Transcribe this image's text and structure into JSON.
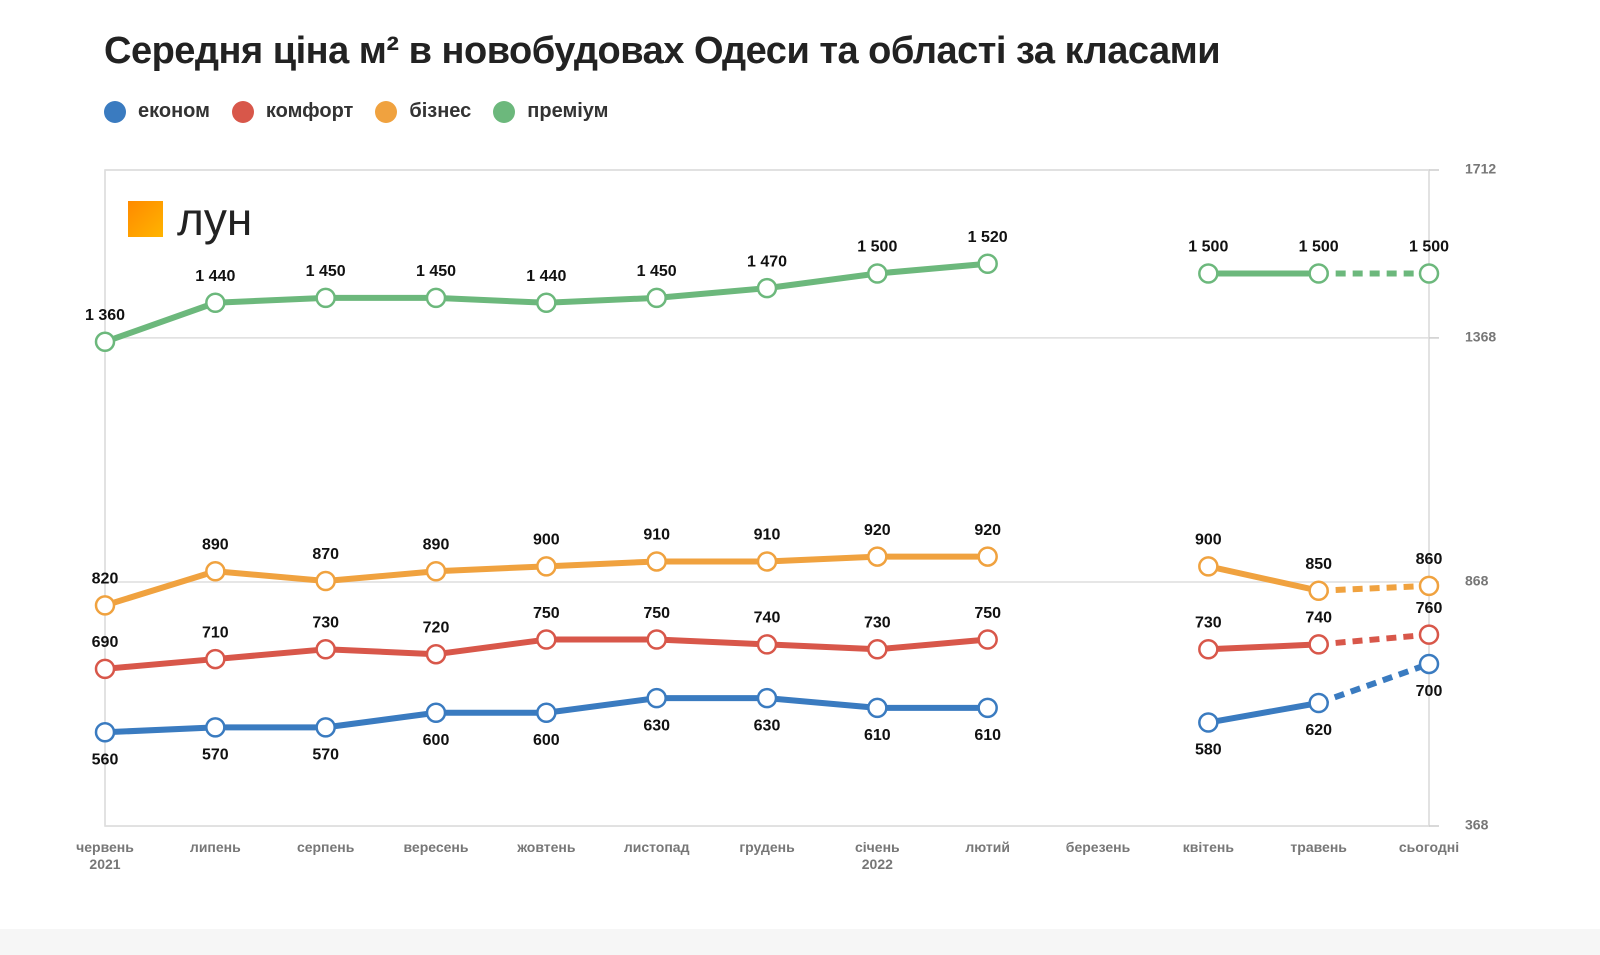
{
  "chart_data": {
    "type": "line",
    "title": "Середня ціна м² в новобудовах Одеси та області за класами",
    "logo": "лун",
    "categories": [
      "червень\n2021",
      "липень",
      "серпень",
      "вересень",
      "жовтень",
      "листопад",
      "грудень",
      "січень\n2022",
      "лютий",
      "березень",
      "квітень",
      "травень",
      "сьогодні"
    ],
    "series": [
      {
        "name": "економ",
        "color": "#3a7bc0",
        "label_position": "below",
        "values": [
          560,
          570,
          570,
          600,
          600,
          630,
          630,
          610,
          610,
          null,
          580,
          620,
          700
        ]
      },
      {
        "name": "комфорт",
        "color": "#d8574a",
        "label_position": "above",
        "values": [
          690,
          710,
          730,
          720,
          750,
          750,
          740,
          730,
          750,
          null,
          730,
          740,
          760
        ]
      },
      {
        "name": "бізнес",
        "color": "#f0a23f",
        "label_position": "above",
        "values": [
          820,
          890,
          870,
          890,
          900,
          910,
          910,
          920,
          920,
          null,
          900,
          850,
          860
        ]
      },
      {
        "name": "преміум",
        "color": "#6cb87c",
        "label_position": "above",
        "values": [
          1360,
          1440,
          1450,
          1450,
          1440,
          1450,
          1470,
          1500,
          1520,
          null,
          1500,
          1500,
          1500
        ],
        "value_labels": [
          "1 360",
          "1 440",
          "1 450",
          "1 450",
          "1 440",
          "1 450",
          "1 470",
          "1 500",
          "1 520",
          null,
          "1 500",
          "1 500",
          "1 500"
        ]
      }
    ],
    "ylim": [
      368,
      1712
    ],
    "yticks": [
      368,
      868,
      1368,
      1712
    ],
    "y_axis_side": "right",
    "grid": true,
    "last_segment_dashed": true
  }
}
